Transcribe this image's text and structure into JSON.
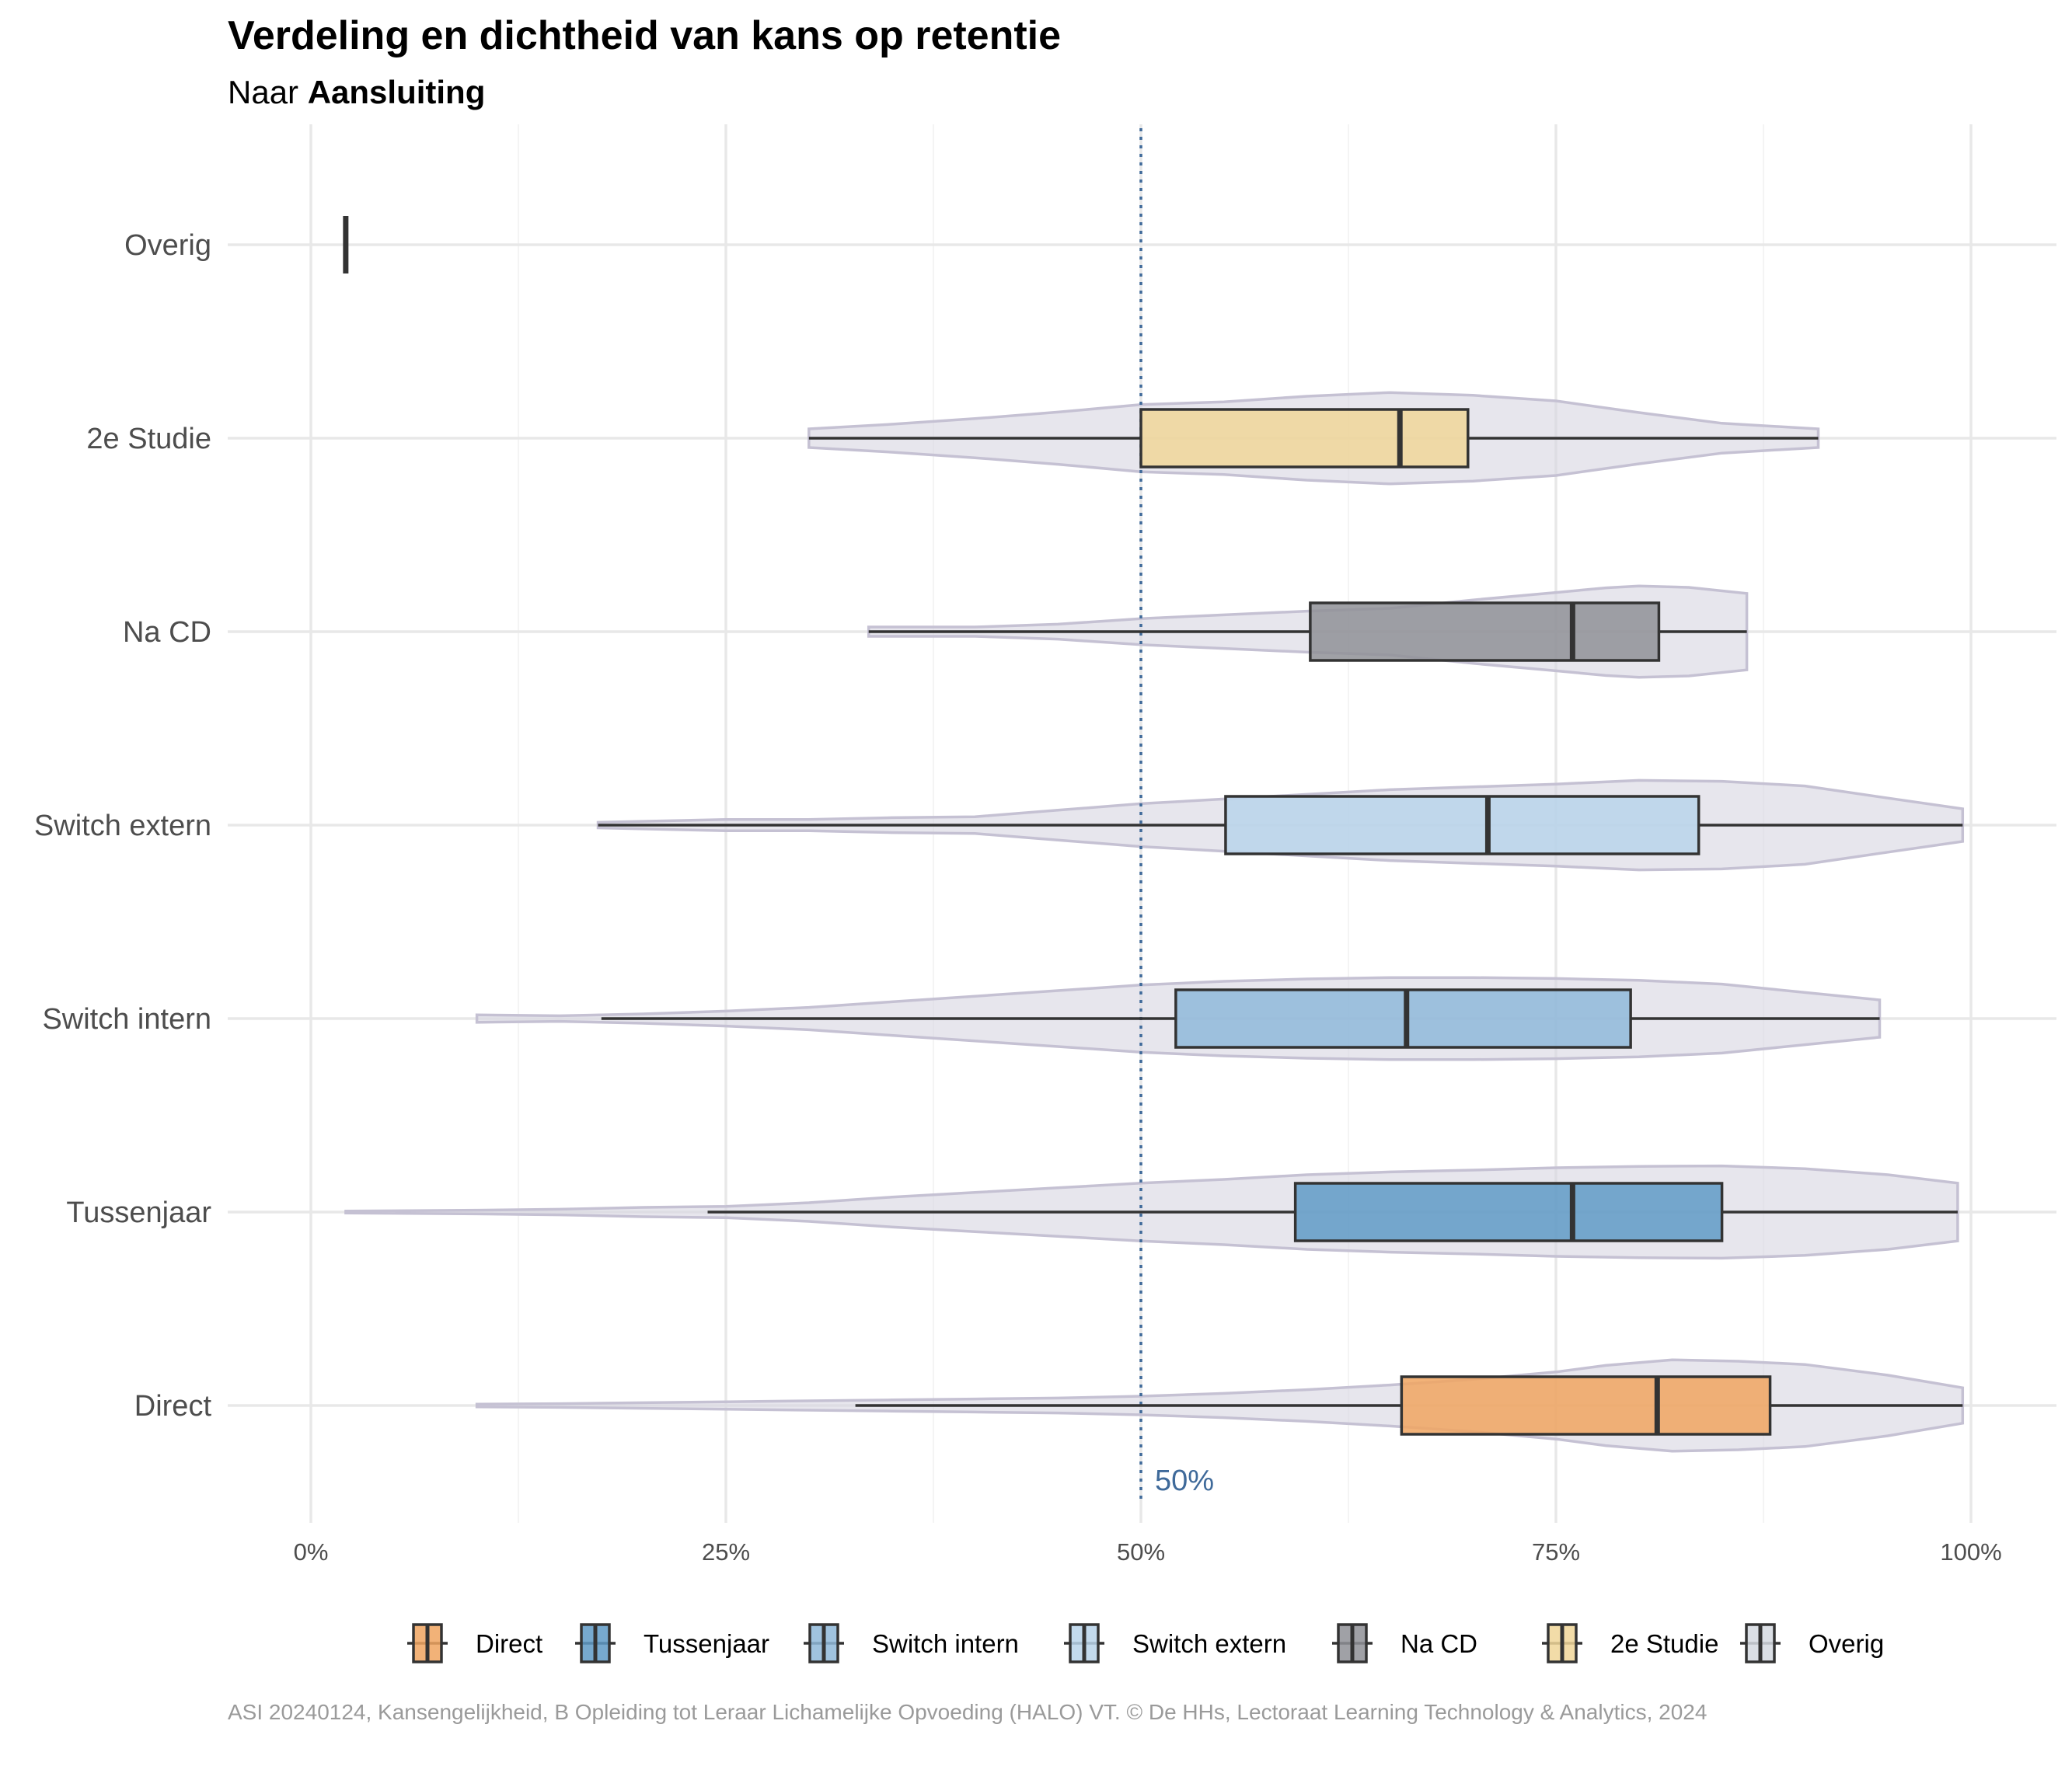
{
  "title": "Verdeling en dichtheid van kans op retentie",
  "subtitle_prefix": "Naar ",
  "subtitle_bold": "Aansluiting",
  "caption": "ASI 20240124, Kansengelijkheid, B Opleiding tot Leraar Lichamelijke Opvoeding (HALO) VT. © De HHs, Lectoraat Learning Technology & Analytics, 2024",
  "chart_data": {
    "type": "violin+boxplot",
    "orientation": "horizontal",
    "xlim": [
      0,
      1
    ],
    "x_ticks": [
      {
        "value": 0,
        "label": "0%"
      },
      {
        "value": 0.25,
        "label": "25%"
      },
      {
        "value": 0.5,
        "label": "50%"
      },
      {
        "value": 0.75,
        "label": "75%"
      },
      {
        "value": 1.0,
        "label": "100%"
      }
    ],
    "reference_line": {
      "value": 0.5,
      "label": "50%",
      "color": "#3f6a9a",
      "style": "dotted"
    },
    "grid": true,
    "legend_position": "bottom",
    "violin_color": "#d9d6e2",
    "violin_border": "#c5c1d3",
    "series": [
      {
        "name": "Overig",
        "color": "#d5d9e0",
        "whisker_low": 0.021,
        "q1": 0.021,
        "median": 0.021,
        "q3": 0.021,
        "whisker_high": 0.021,
        "violin": null
      },
      {
        "name": "2e Studie",
        "color": "#f0d699",
        "whisker_low": 0.3,
        "q1": 0.5,
        "median": 0.656,
        "q3": 0.697,
        "whisker_high": 0.908,
        "violin": [
          [
            0.3,
            0.2
          ],
          [
            0.35,
            0.3
          ],
          [
            0.4,
            0.42
          ],
          [
            0.45,
            0.56
          ],
          [
            0.5,
            0.72
          ],
          [
            0.55,
            0.78
          ],
          [
            0.6,
            0.9
          ],
          [
            0.65,
            0.98
          ],
          [
            0.7,
            0.92
          ],
          [
            0.75,
            0.8
          ],
          [
            0.8,
            0.55
          ],
          [
            0.85,
            0.32
          ],
          [
            0.908,
            0.2
          ]
        ]
      },
      {
        "name": "Na CD",
        "color": "#8f9097",
        "whisker_low": 0.336,
        "q1": 0.602,
        "median": 0.76,
        "q3": 0.812,
        "whisker_high": 0.865,
        "violin": [
          [
            0.336,
            0.1
          ],
          [
            0.4,
            0.1
          ],
          [
            0.45,
            0.16
          ],
          [
            0.5,
            0.28
          ],
          [
            0.55,
            0.36
          ],
          [
            0.6,
            0.44
          ],
          [
            0.65,
            0.5
          ],
          [
            0.7,
            0.68
          ],
          [
            0.75,
            0.84
          ],
          [
            0.78,
            0.94
          ],
          [
            0.8,
            0.98
          ],
          [
            0.83,
            0.95
          ],
          [
            0.865,
            0.82
          ]
        ]
      },
      {
        "name": "Switch extern",
        "color": "#b8d3ea",
        "whisker_low": 0.173,
        "q1": 0.551,
        "median": 0.709,
        "q3": 0.836,
        "whisker_high": 0.995,
        "violin": [
          [
            0.173,
            0.06
          ],
          [
            0.25,
            0.12
          ],
          [
            0.3,
            0.12
          ],
          [
            0.35,
            0.16
          ],
          [
            0.4,
            0.18
          ],
          [
            0.45,
            0.32
          ],
          [
            0.5,
            0.46
          ],
          [
            0.55,
            0.56
          ],
          [
            0.6,
            0.66
          ],
          [
            0.65,
            0.76
          ],
          [
            0.7,
            0.82
          ],
          [
            0.75,
            0.88
          ],
          [
            0.8,
            0.96
          ],
          [
            0.85,
            0.94
          ],
          [
            0.9,
            0.84
          ],
          [
            0.95,
            0.58
          ],
          [
            0.995,
            0.35
          ]
        ]
      },
      {
        "name": "Switch intern",
        "color": "#8fb8d9",
        "whisker_low": 0.175,
        "q1": 0.521,
        "median": 0.66,
        "q3": 0.795,
        "whisker_high": 0.945,
        "violin": [
          [
            0.1,
            0.08
          ],
          [
            0.15,
            0.06
          ],
          [
            0.2,
            0.1
          ],
          [
            0.25,
            0.16
          ],
          [
            0.3,
            0.24
          ],
          [
            0.35,
            0.36
          ],
          [
            0.4,
            0.48
          ],
          [
            0.45,
            0.6
          ],
          [
            0.5,
            0.72
          ],
          [
            0.55,
            0.8
          ],
          [
            0.6,
            0.85
          ],
          [
            0.65,
            0.88
          ],
          [
            0.7,
            0.88
          ],
          [
            0.75,
            0.86
          ],
          [
            0.8,
            0.82
          ],
          [
            0.85,
            0.74
          ],
          [
            0.9,
            0.56
          ],
          [
            0.945,
            0.4
          ]
        ]
      },
      {
        "name": "Tussenjaar",
        "color": "#5f9ac6",
        "whisker_low": 0.239,
        "q1": 0.593,
        "median": 0.76,
        "q3": 0.85,
        "whisker_high": 0.992,
        "violin": [
          [
            0.021,
            0.02
          ],
          [
            0.1,
            0.04
          ],
          [
            0.15,
            0.06
          ],
          [
            0.2,
            0.1
          ],
          [
            0.25,
            0.12
          ],
          [
            0.3,
            0.2
          ],
          [
            0.35,
            0.32
          ],
          [
            0.4,
            0.42
          ],
          [
            0.45,
            0.52
          ],
          [
            0.5,
            0.62
          ],
          [
            0.55,
            0.7
          ],
          [
            0.6,
            0.8
          ],
          [
            0.65,
            0.86
          ],
          [
            0.7,
            0.9
          ],
          [
            0.75,
            0.95
          ],
          [
            0.8,
            0.98
          ],
          [
            0.85,
            0.99
          ],
          [
            0.9,
            0.93
          ],
          [
            0.95,
            0.8
          ],
          [
            0.992,
            0.62
          ]
        ]
      },
      {
        "name": "Direct",
        "color": "#f0a460",
        "whisker_low": 0.328,
        "q1": 0.657,
        "median": 0.811,
        "q3": 0.879,
        "whisker_high": 0.995,
        "violin": [
          [
            0.1,
            0.03
          ],
          [
            0.15,
            0.04
          ],
          [
            0.2,
            0.06
          ],
          [
            0.25,
            0.08
          ],
          [
            0.3,
            0.1
          ],
          [
            0.35,
            0.12
          ],
          [
            0.4,
            0.14
          ],
          [
            0.45,
            0.16
          ],
          [
            0.5,
            0.2
          ],
          [
            0.55,
            0.26
          ],
          [
            0.6,
            0.34
          ],
          [
            0.65,
            0.44
          ],
          [
            0.7,
            0.56
          ],
          [
            0.75,
            0.72
          ],
          [
            0.78,
            0.86
          ],
          [
            0.82,
            0.98
          ],
          [
            0.86,
            0.95
          ],
          [
            0.9,
            0.88
          ],
          [
            0.95,
            0.65
          ],
          [
            0.995,
            0.38
          ]
        ]
      }
    ],
    "legend_order": [
      "Direct",
      "Tussenjaar",
      "Switch intern",
      "Switch extern",
      "Na CD",
      "2e Studie",
      "Overig"
    ]
  }
}
